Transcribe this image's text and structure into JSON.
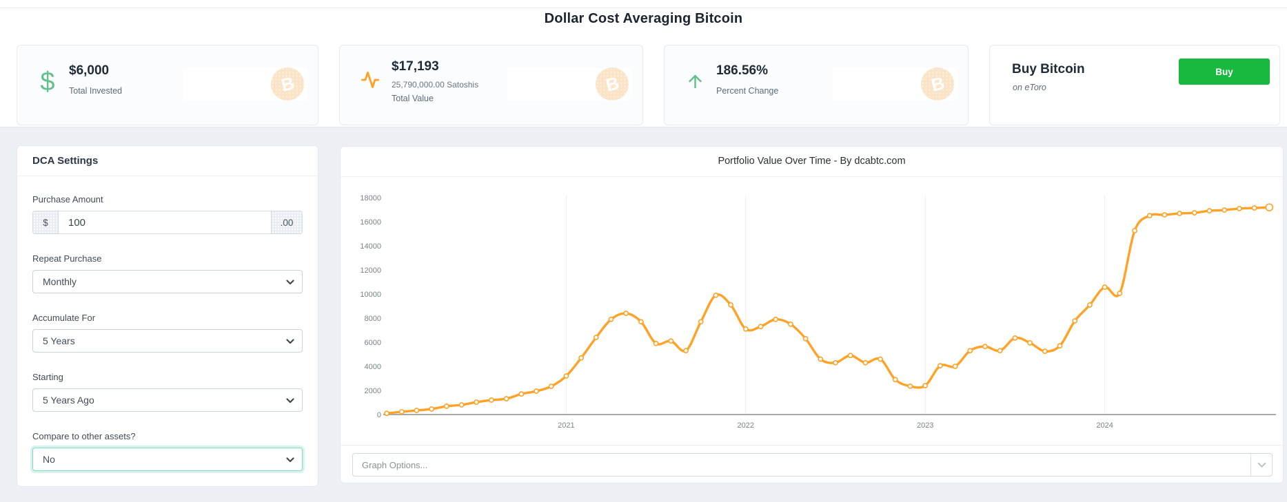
{
  "page": {
    "title": "Dollar Cost Averaging Bitcoin"
  },
  "cards": {
    "invested": {
      "value": "$6,000",
      "label": "Total Invested"
    },
    "total_value": {
      "value": "$17,193",
      "satoshis": "25,790,000.00 Satoshis",
      "label": "Total Value"
    },
    "percent": {
      "value": "186.56%",
      "label": "Percent Change"
    },
    "buy": {
      "title": "Buy Bitcoin",
      "subtitle": "on eToro",
      "button_label": "Buy"
    }
  },
  "settings": {
    "header": "DCA Settings",
    "purchase_amount": {
      "label": "Purchase Amount",
      "prefix": "$",
      "value": "100",
      "suffix": ".00"
    },
    "repeat_purchase": {
      "label": "Repeat Purchase",
      "value": "Monthly"
    },
    "accumulate_for": {
      "label": "Accumulate For",
      "value": "5 Years"
    },
    "starting": {
      "label": "Starting",
      "value": "5 Years Ago"
    },
    "compare": {
      "label": "Compare to other assets?",
      "value": "No"
    }
  },
  "graph": {
    "title": "Portfolio Value Over Time - By dcabtc.com",
    "options_placeholder": "Graph Options..."
  },
  "chart_data": {
    "type": "line",
    "title": "Portfolio Value Over Time - By dcabtc.com",
    "x_start": "2020-01",
    "x_interval": "month",
    "x_tick_labels": [
      "2021",
      "2022",
      "2023",
      "2024"
    ],
    "x_tick_month_indices": [
      12,
      24,
      36,
      48
    ],
    "ylim": [
      0,
      18000
    ],
    "y_tick_step": 2000,
    "grid": "vertical-year-lines-only",
    "legend": "none",
    "line_color": "#ffa226",
    "point_style": "hollow-circle",
    "values": [
      100,
      230,
      340,
      460,
      690,
      800,
      1030,
      1200,
      1310,
      1710,
      1940,
      2340,
      3200,
      4700,
      6400,
      7900,
      8400,
      7700,
      5900,
      6100,
      5300,
      7700,
      9900,
      9100,
      7100,
      7300,
      7900,
      7500,
      6300,
      4600,
      4300,
      4900,
      4300,
      4600,
      2900,
      2350,
      2400,
      4050,
      4000,
      5300,
      5650,
      5300,
      6350,
      5950,
      5250,
      5700,
      7770,
      9090,
      10570,
      10060,
      15260,
      16510,
      16570,
      16690,
      16740,
      16910,
      16970,
      17090,
      17140,
      17193
    ]
  },
  "colors": {
    "accent_green": "#62c08d",
    "line_orange": "#ffa226",
    "buy_green": "#18b93e",
    "focus_teal": "#86d8c9",
    "btc_watermark": "#fbe3c6"
  }
}
